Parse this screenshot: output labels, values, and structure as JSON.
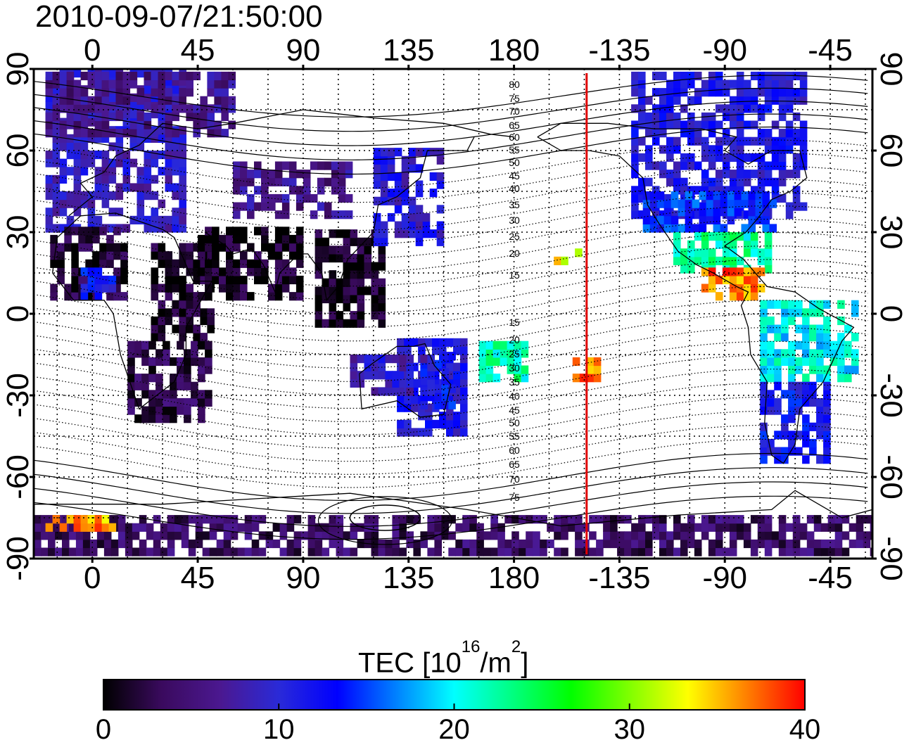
{
  "title": "2010-09-07/21:50:00",
  "lon_ticks": [
    {
      "lon": 0,
      "label": "0"
    },
    {
      "lon": 45,
      "label": "45"
    },
    {
      "lon": 90,
      "label": "90"
    },
    {
      "lon": 135,
      "label": "135"
    },
    {
      "lon": 180,
      "label": "180"
    },
    {
      "lon": 225,
      "label": "-135"
    },
    {
      "lon": 270,
      "label": "-90"
    },
    {
      "lon": 315,
      "label": "-45"
    }
  ],
  "lat_ticks": [
    {
      "lat": 90,
      "label": "90"
    },
    {
      "lat": 60,
      "label": "60"
    },
    {
      "lat": 30,
      "label": "30"
    },
    {
      "lat": 0,
      "label": "0"
    },
    {
      "lat": -30,
      "label": "-30"
    },
    {
      "lat": -60,
      "label": "-60"
    },
    {
      "lat": -90,
      "label": "-90"
    }
  ],
  "lon_range": [
    -25,
    333
  ],
  "lat_range": [
    -90,
    90
  ],
  "meridian_marker": {
    "lon": 211,
    "color": "#e00000"
  },
  "contour_labels": {
    "north": [
      "80",
      "75",
      "70",
      "65",
      "60",
      "55",
      "50",
      "45",
      "40",
      "35",
      "30",
      "25",
      "20",
      "15"
    ],
    "south": [
      "15",
      "20",
      "25",
      "30",
      "35",
      "40",
      "45",
      "50",
      "55",
      "60",
      "65",
      "70",
      "75"
    ]
  },
  "colorbar": {
    "title_prefix": "TEC  [10",
    "title_exp": "16",
    "title_mid": "/m",
    "title_exp2": "2",
    "title_suffix": "]",
    "min": 0,
    "max": 40,
    "tick_labels": [
      "0",
      "10",
      "20",
      "30",
      "40"
    ],
    "colors": [
      "#000000",
      "#3a0a5e",
      "#4b1890",
      "#2a2ad8",
      "#0000ff",
      "#0080ff",
      "#00ffff",
      "#00ff80",
      "#00ff00",
      "#80ff00",
      "#ffff00",
      "#ff8000",
      "#ff0000"
    ]
  },
  "tec_regions": [
    {
      "name": "europe",
      "lon": [
        -20,
        40
      ],
      "lat": [
        30,
        88
      ],
      "v": 9
    },
    {
      "name": "scandinavia-north",
      "lon": [
        -20,
        60
      ],
      "lat": [
        65,
        88
      ],
      "v": 6
    },
    {
      "name": "africa-north",
      "lon": [
        -18,
        15
      ],
      "lat": [
        5,
        30
      ],
      "v": 2
    },
    {
      "name": "africa-east",
      "lon": [
        25,
        52
      ],
      "lat": [
        -10,
        25
      ],
      "v": 1
    },
    {
      "name": "africa-south",
      "lon": [
        15,
        50
      ],
      "lat": [
        -40,
        -10
      ],
      "v": 3
    },
    {
      "name": "west-africa-blue",
      "lon": [
        -5,
        10
      ],
      "lat": [
        5,
        15
      ],
      "v": 12
    },
    {
      "name": "arabia-india",
      "lon": [
        45,
        90
      ],
      "lat": [
        5,
        30
      ],
      "v": 1
    },
    {
      "name": "central-asia",
      "lon": [
        60,
        110
      ],
      "lat": [
        35,
        55
      ],
      "v": 6
    },
    {
      "name": "china",
      "lon": [
        95,
        125
      ],
      "lat": [
        -5,
        30
      ],
      "v": 1
    },
    {
      "name": "japan",
      "lon": [
        120,
        150
      ],
      "lat": [
        25,
        60
      ],
      "v": 10
    },
    {
      "name": "australia",
      "lon": [
        130,
        160
      ],
      "lat": [
        -45,
        -10
      ],
      "v": 11
    },
    {
      "name": "australia-inner",
      "lon": [
        140,
        155
      ],
      "lat": [
        -35,
        -15
      ],
      "v": 13
    },
    {
      "name": "indonesia",
      "lon": [
        110,
        145
      ],
      "lat": [
        -30,
        -15
      ],
      "v": 9
    },
    {
      "name": "pacific-south-green",
      "lon": [
        165,
        185
      ],
      "lat": [
        -25,
        -10
      ],
      "v": 22
    },
    {
      "name": "pacific-hawaii",
      "lon": [
        197,
        207
      ],
      "lat": [
        18,
        24
      ],
      "v": 34
    },
    {
      "name": "north-america",
      "lon": [
        230,
        305
      ],
      "lat": [
        35,
        88
      ],
      "v": 11
    },
    {
      "name": "north-america-south",
      "lon": [
        235,
        290
      ],
      "lat": [
        30,
        45
      ],
      "v": 14
    },
    {
      "name": "mexico",
      "lon": [
        248,
        290
      ],
      "lat": [
        15,
        30
      ],
      "v": 22
    },
    {
      "name": "central-america",
      "lon": [
        260,
        285
      ],
      "lat": [
        5,
        17
      ],
      "v": 37
    },
    {
      "name": "south-america-north",
      "lon": [
        285,
        325
      ],
      "lat": [
        -25,
        5
      ],
      "v": 20
    },
    {
      "name": "south-america-south",
      "lon": [
        285,
        315
      ],
      "lat": [
        -55,
        -25
      ],
      "v": 12
    },
    {
      "name": "antarctica",
      "lon": [
        -25,
        333
      ],
      "lat": [
        -89,
        -76
      ],
      "v": 4
    },
    {
      "name": "antarctic-coast-hot",
      "lon": [
        -20,
        10
      ],
      "lat": [
        -80,
        -74
      ],
      "v": 36
    },
    {
      "name": "pacific-south-red",
      "lon": [
        205,
        215
      ],
      "lat": [
        -25,
        -17
      ],
      "v": 37
    }
  ]
}
